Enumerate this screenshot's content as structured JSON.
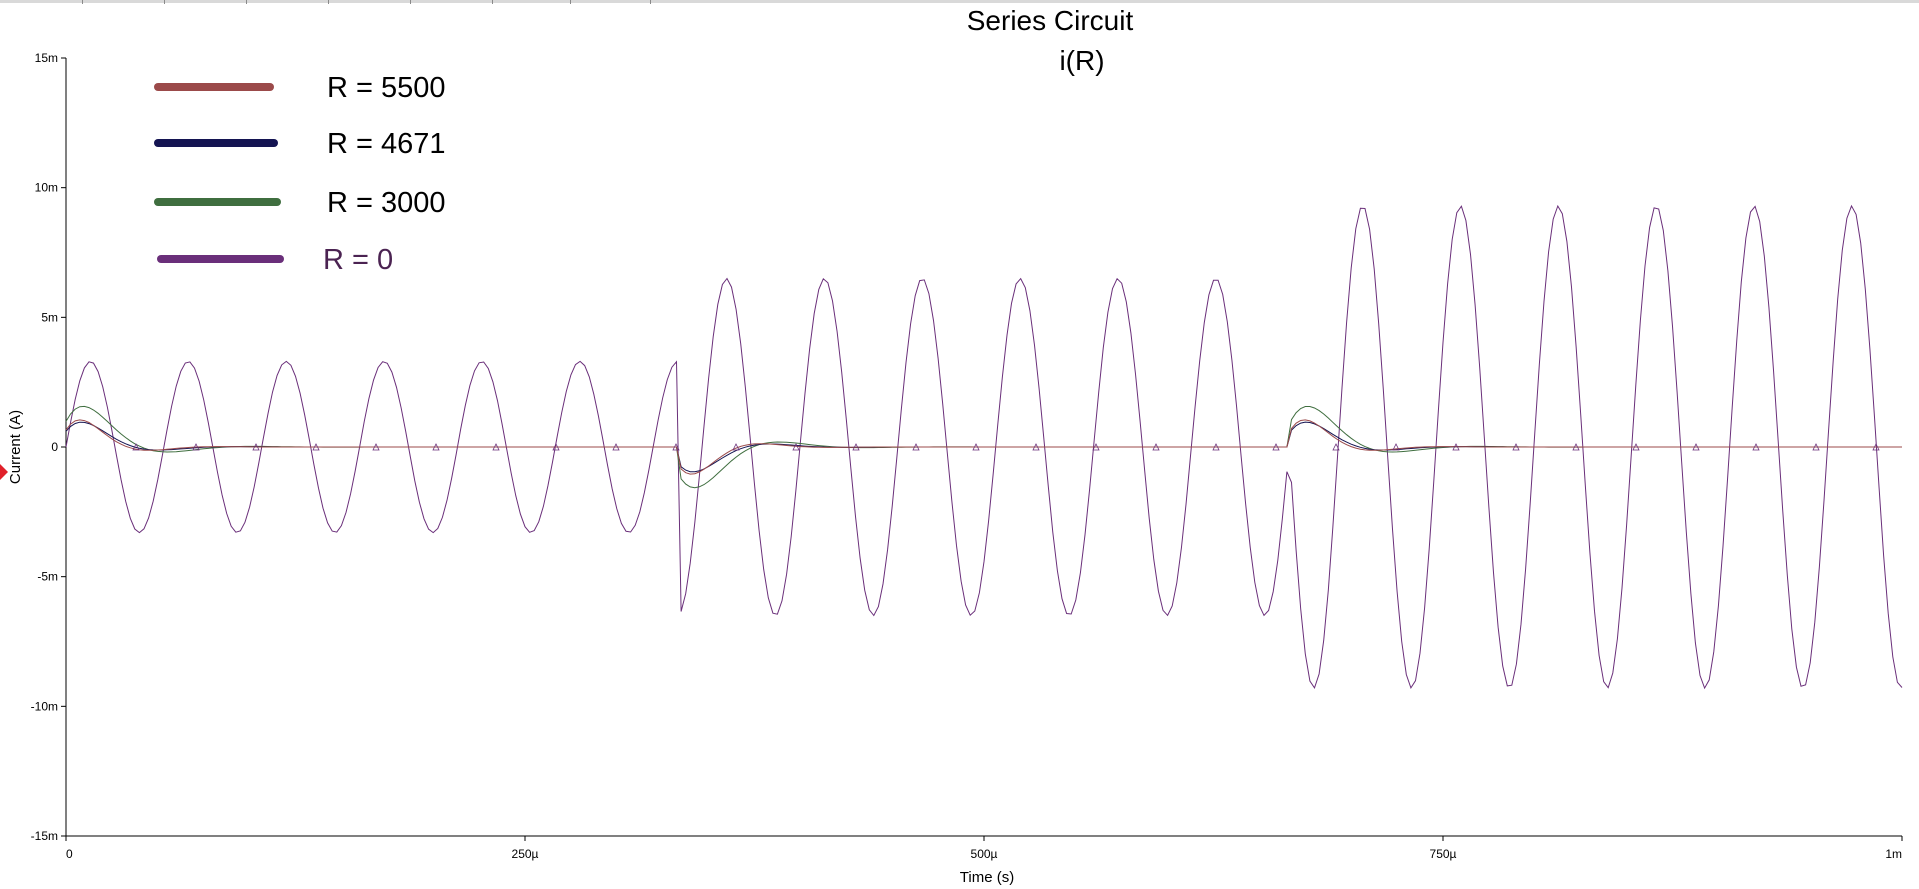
{
  "chart_data": {
    "type": "line",
    "title": "Series Circuit",
    "subtitle": "i(R)",
    "xlabel": "Time (s)",
    "ylabel": "Current (A)",
    "xlim": [
      0,
      0.001
    ],
    "ylim": [
      -0.015,
      0.015
    ],
    "x_ticks": [
      {
        "value": 0,
        "label": "0"
      },
      {
        "value": 0.00025,
        "label": "250µ"
      },
      {
        "value": 0.0005,
        "label": "500µ"
      },
      {
        "value": 0.00075,
        "label": "750µ"
      },
      {
        "value": 0.001,
        "label": "1m"
      }
    ],
    "y_ticks": [
      {
        "value": 0.015,
        "label": "15m"
      },
      {
        "value": 0.01,
        "label": "10m"
      },
      {
        "value": 0.005,
        "label": "5m"
      },
      {
        "value": 0,
        "label": "0"
      },
      {
        "value": -0.005,
        "label": "-5m"
      },
      {
        "value": -0.01,
        "label": "-10m"
      },
      {
        "value": -0.015,
        "label": "-15m"
      }
    ],
    "grid": false,
    "legend_position": "top-left",
    "series": [
      {
        "name": "R = 5500",
        "label": "R = 5500",
        "color": "#9b4a4a",
        "label_color": "#000000",
        "decay_tau": 1.8e-05,
        "decay_amp": 0.0012,
        "sine_amp": [
          0,
          0,
          0
        ],
        "marker_color": "#9b4a4a"
      },
      {
        "name": "R = 4671",
        "label": "R = 4671",
        "color": "#141452",
        "label_color": "#000000",
        "decay_tau": 2e-05,
        "decay_amp": 0.0011,
        "sine_amp": [
          0,
          0,
          0
        ],
        "marker_color": "#141452"
      },
      {
        "name": "R = 3000",
        "label": "R = 3000",
        "color": "#3f6e3f",
        "label_color": "#000000",
        "decay_tau": 2.2e-05,
        "decay_amp": 0.0018,
        "sine_amp": [
          0,
          0,
          0
        ],
        "marker_color": "#3f6e3f"
      },
      {
        "name": "R = 0",
        "label": "R = 0",
        "color": "#6a2f7a",
        "label_color": "#4b2352",
        "decay_tau": 0,
        "decay_amp": 0,
        "sine_amp": [
          0.0033,
          0.0065,
          0.0093
        ],
        "marker_color": "#6a2f7a"
      }
    ],
    "sine_period": 5.33e-05,
    "segments": [
      {
        "start": 0,
        "end": 0.000333,
        "sign": 1
      },
      {
        "start": 0.000333,
        "end": 0.000667,
        "sign": -1
      },
      {
        "start": 0.000667,
        "end": 0.001,
        "sign": 1
      }
    ],
    "markers_note": "△"
  }
}
